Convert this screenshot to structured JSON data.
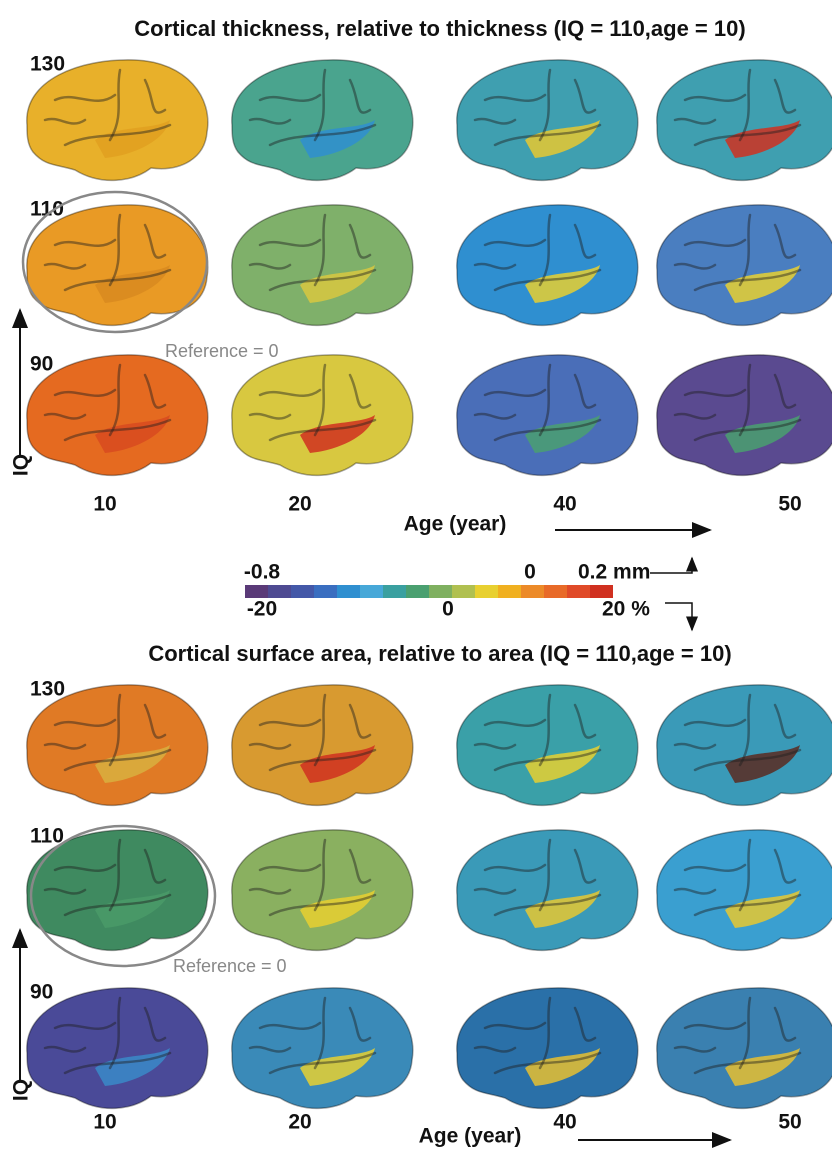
{
  "panels": [
    {
      "title": "Cortical thickness, relative to thickness (IQ = 110,age = 10)",
      "row_labels": [
        "130",
        "110",
        "90"
      ],
      "column_labels": [
        "10",
        "20",
        "40",
        "50"
      ],
      "y_axis_label": "IQ",
      "x_axis_label": "Age (year)",
      "reference_label": "Reference = 0"
    },
    {
      "title": "Cortical surface area, relative to area (IQ = 110,age = 10)",
      "row_labels": [
        "130",
        "110",
        "90"
      ],
      "column_labels": [
        "10",
        "20",
        "40",
        "50"
      ],
      "y_axis_label": "IQ",
      "x_axis_label": "Age (year)",
      "reference_label": "Reference = 0"
    }
  ],
  "colorbar": {
    "top_labels": [
      "-0.8",
      "0",
      "0.2 mm"
    ],
    "bottom_labels": [
      "-20",
      "0",
      "20 %"
    ]
  }
}
